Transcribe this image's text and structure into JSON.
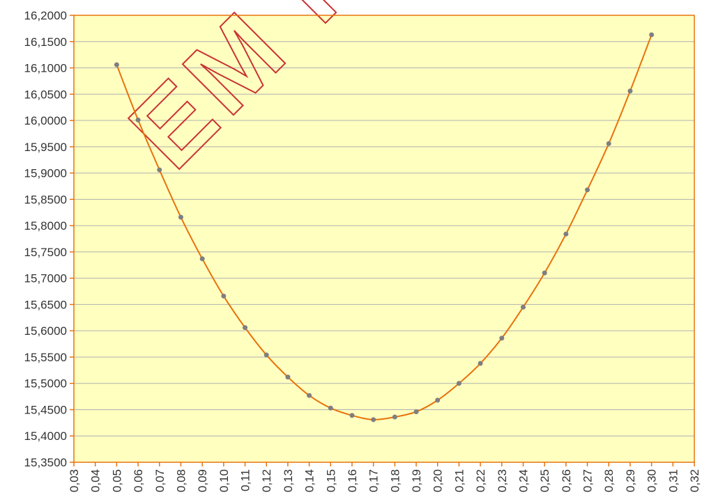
{
  "chart_data": {
    "type": "line",
    "watermark": "EM RE",
    "x": [
      0.05,
      0.06,
      0.07,
      0.08,
      0.09,
      0.1,
      0.11,
      0.12,
      0.13,
      0.14,
      0.15,
      0.16,
      0.17,
      0.18,
      0.19,
      0.2,
      0.21,
      0.22,
      0.23,
      0.24,
      0.25,
      0.26,
      0.27,
      0.28,
      0.29,
      0.3
    ],
    "series": [
      {
        "color": "#e8720c",
        "marker_color": "#7f7f7f",
        "values": [
          16.106,
          16.001,
          15.906,
          15.816,
          15.737,
          15.666,
          15.606,
          15.554,
          15.512,
          15.477,
          15.453,
          15.439,
          15.431,
          15.436,
          15.446,
          15.468,
          15.5,
          15.538,
          15.586,
          15.645,
          15.71,
          15.784,
          15.868,
          15.956,
          16.056,
          16.163
        ]
      }
    ],
    "xlim": [
      0.03,
      0.32
    ],
    "xticks": [
      {
        "value": 0.03,
        "label": "0,03"
      },
      {
        "value": 0.04,
        "label": "0,04"
      },
      {
        "value": 0.05,
        "label": "0,05"
      },
      {
        "value": 0.06,
        "label": "0,06"
      },
      {
        "value": 0.07,
        "label": "0,07"
      },
      {
        "value": 0.08,
        "label": "0,08"
      },
      {
        "value": 0.09,
        "label": "0,09"
      },
      {
        "value": 0.1,
        "label": "0,10"
      },
      {
        "value": 0.11,
        "label": "0,11"
      },
      {
        "value": 0.12,
        "label": "0,12"
      },
      {
        "value": 0.13,
        "label": "0,13"
      },
      {
        "value": 0.14,
        "label": "0,14"
      },
      {
        "value": 0.15,
        "label": "0,15"
      },
      {
        "value": 0.16,
        "label": "0,16"
      },
      {
        "value": 0.17,
        "label": "0,17"
      },
      {
        "value": 0.18,
        "label": "0,18"
      },
      {
        "value": 0.19,
        "label": "0,19"
      },
      {
        "value": 0.2,
        "label": "0,20"
      },
      {
        "value": 0.21,
        "label": "0,21"
      },
      {
        "value": 0.22,
        "label": "0,22"
      },
      {
        "value": 0.23,
        "label": "0,23"
      },
      {
        "value": 0.24,
        "label": "0,24"
      },
      {
        "value": 0.25,
        "label": "0,25"
      },
      {
        "value": 0.26,
        "label": "0,26"
      },
      {
        "value": 0.27,
        "label": "0,27"
      },
      {
        "value": 0.28,
        "label": "0,28"
      },
      {
        "value": 0.29,
        "label": "0,29"
      },
      {
        "value": 0.3,
        "label": "0,30"
      },
      {
        "value": 0.31,
        "label": "0,31"
      },
      {
        "value": 0.32,
        "label": "0,32"
      }
    ],
    "ylim": [
      15.35,
      16.2
    ],
    "yticks": [
      {
        "value": 15.35,
        "label": "15,3500"
      },
      {
        "value": 15.4,
        "label": "15,4000"
      },
      {
        "value": 15.45,
        "label": "15,4500"
      },
      {
        "value": 15.5,
        "label": "15,5000"
      },
      {
        "value": 15.55,
        "label": "15,5500"
      },
      {
        "value": 15.6,
        "label": "15,6000"
      },
      {
        "value": 15.65,
        "label": "15,6500"
      },
      {
        "value": 15.7,
        "label": "15,7000"
      },
      {
        "value": 15.75,
        "label": "15,7500"
      },
      {
        "value": 15.8,
        "label": "15,8000"
      },
      {
        "value": 15.85,
        "label": "15,8500"
      },
      {
        "value": 15.9,
        "label": "15,9000"
      },
      {
        "value": 15.95,
        "label": "15,9500"
      },
      {
        "value": 16.0,
        "label": "16,0000"
      },
      {
        "value": 16.05,
        "label": "16,0500"
      },
      {
        "value": 16.1,
        "label": "16,1000"
      },
      {
        "value": 16.15,
        "label": "16,1500"
      },
      {
        "value": 16.2,
        "label": "16,2000"
      }
    ],
    "grid": true,
    "plot_background": "#ffffc0",
    "axis_color": "#e8720c"
  }
}
